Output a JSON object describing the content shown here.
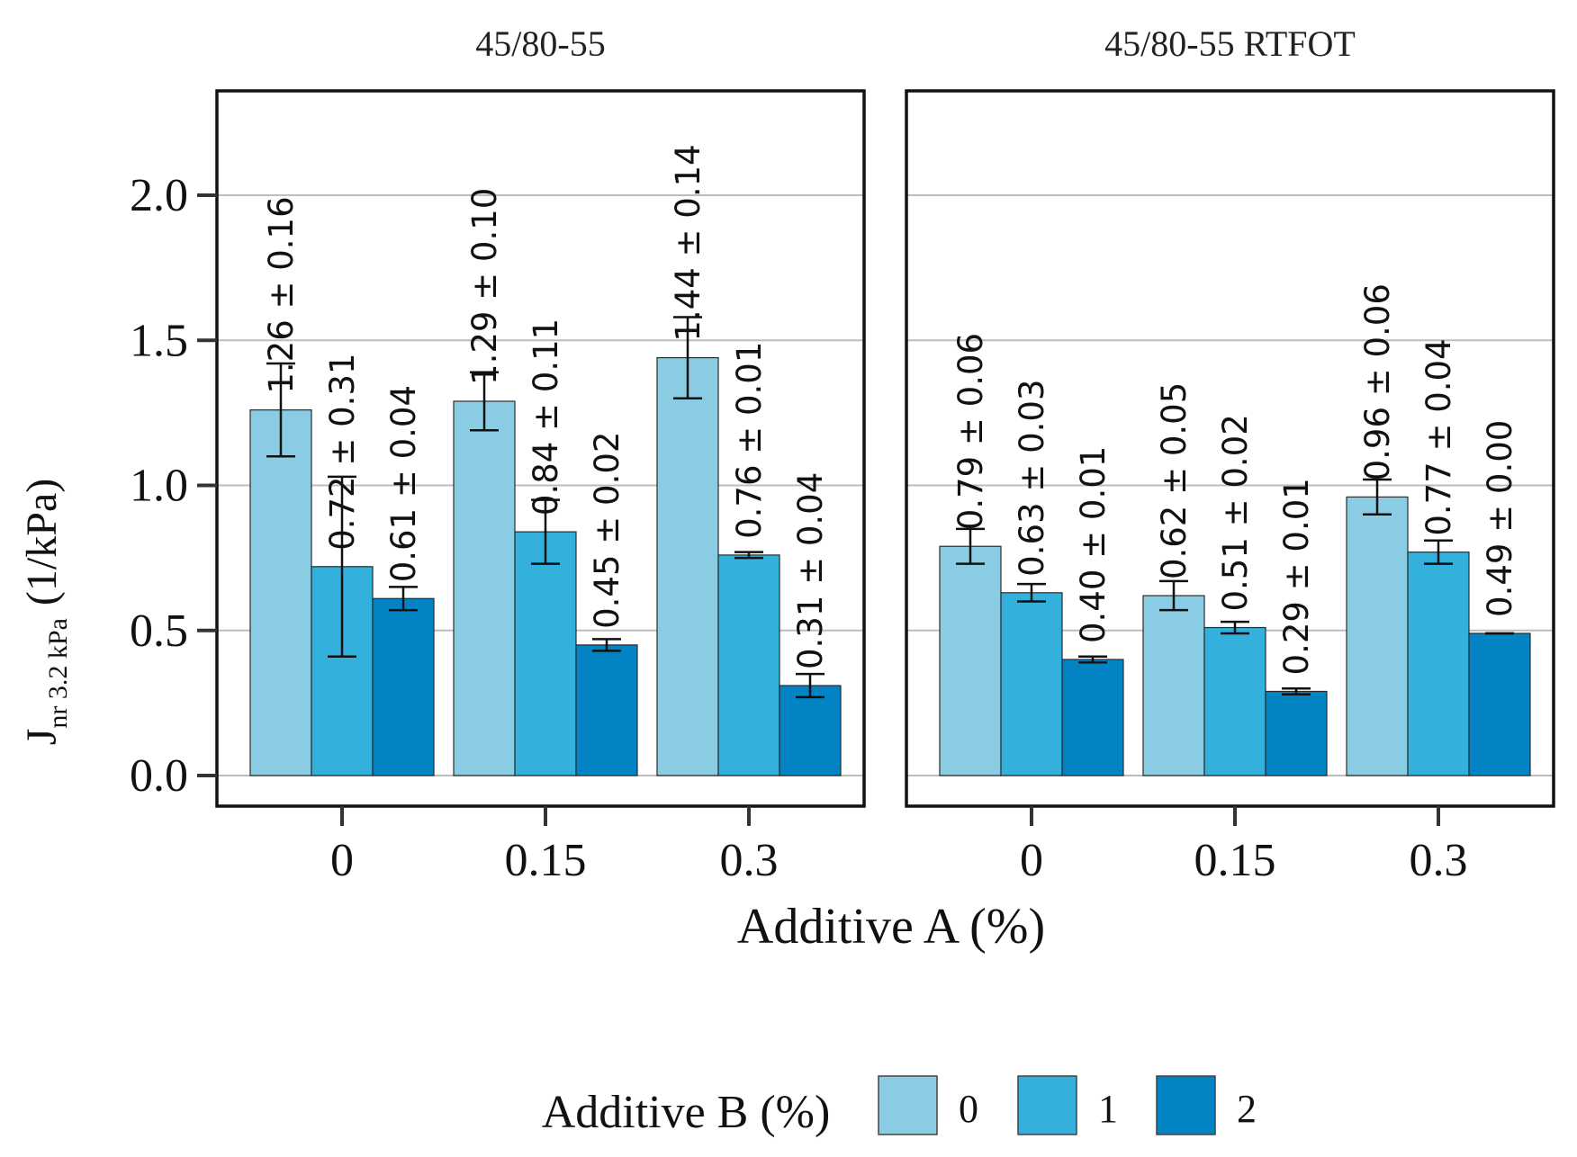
{
  "chart_data": {
    "type": "bar",
    "facets": [
      "45/80-55",
      "45/80-55 RTFOT"
    ],
    "categories": [
      "0",
      "0.15",
      "0.3"
    ],
    "xlabel": "Additive A (%)",
    "ylabel_main": "J",
    "ylabel_sub": "nr 3.2 kPa",
    "ylabel_unit": "(1/kPa)",
    "ylim": [
      0,
      2.3
    ],
    "yticks": [
      "0.0",
      "0.5",
      "1.0",
      "1.5",
      "2.0"
    ],
    "ytick_values": [
      0,
      0.5,
      1.0,
      1.5,
      2.0
    ],
    "grid": true,
    "legend": {
      "title": "Additive B (%)",
      "position": "bottom",
      "entries": [
        "0",
        "1",
        "2"
      ]
    },
    "colors": [
      "#89cce4",
      "#34b0dc",
      "#0183c4"
    ],
    "panels": [
      {
        "facet": "45/80-55",
        "series": [
          {
            "name": "0",
            "values": [
              1.26,
              1.29,
              1.44
            ],
            "errors": [
              0.16,
              0.1,
              0.14
            ],
            "labels": [
              "1.26 ± 0.16",
              "1.29 ± 0.10",
              "1.44 ± 0.14"
            ]
          },
          {
            "name": "1",
            "values": [
              0.72,
              0.84,
              0.76
            ],
            "errors": [
              0.31,
              0.11,
              0.01
            ],
            "labels": [
              "0.72 ± 0.31",
              "0.84 ± 0.11",
              "0.76 ± 0.01"
            ]
          },
          {
            "name": "2",
            "values": [
              0.61,
              0.45,
              0.31
            ],
            "errors": [
              0.04,
              0.02,
              0.04
            ],
            "labels": [
              "0.61 ± 0.04",
              "0.45 ± 0.02",
              "0.31 ± 0.04"
            ]
          }
        ]
      },
      {
        "facet": "45/80-55 RTFOT",
        "series": [
          {
            "name": "0",
            "values": [
              0.79,
              0.62,
              0.96
            ],
            "errors": [
              0.06,
              0.05,
              0.06
            ],
            "labels": [
              "0.79 ± 0.06",
              "0.62 ± 0.05",
              "0.96 ± 0.06"
            ]
          },
          {
            "name": "1",
            "values": [
              0.63,
              0.51,
              0.77
            ],
            "errors": [
              0.03,
              0.02,
              0.04
            ],
            "labels": [
              "0.63 ± 0.03",
              "0.51 ± 0.02",
              "0.77 ± 0.04"
            ]
          },
          {
            "name": "2",
            "values": [
              0.4,
              0.29,
              0.49
            ],
            "errors": [
              0.01,
              0.01,
              0.0
            ],
            "labels": [
              "0.40 ± 0.01",
              "0.29 ± 0.01",
              "0.49 ± 0.00"
            ]
          }
        ]
      }
    ]
  }
}
